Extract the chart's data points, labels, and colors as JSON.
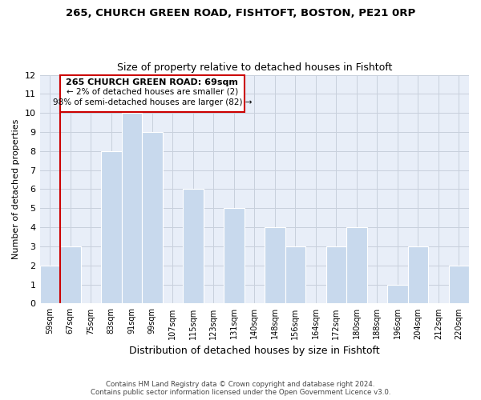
{
  "title": "265, CHURCH GREEN ROAD, FISHTOFT, BOSTON, PE21 0RP",
  "subtitle": "Size of property relative to detached houses in Fishtoft",
  "xlabel": "Distribution of detached houses by size in Fishtoft",
  "ylabel": "Number of detached properties",
  "footnote1": "Contains HM Land Registry data © Crown copyright and database right 2024.",
  "footnote2": "Contains public sector information licensed under the Open Government Licence v3.0.",
  "annotation_line1": "265 CHURCH GREEN ROAD: 69sqm",
  "annotation_line2": "← 2% of detached houses are smaller (2)",
  "annotation_line3": "98% of semi-detached houses are larger (82) →",
  "bar_labels": [
    "59sqm",
    "67sqm",
    "75sqm",
    "83sqm",
    "91sqm",
    "99sqm",
    "107sqm",
    "115sqm",
    "123sqm",
    "131sqm",
    "140sqm",
    "148sqm",
    "156sqm",
    "164sqm",
    "172sqm",
    "180sqm",
    "188sqm",
    "196sqm",
    "204sqm",
    "212sqm",
    "220sqm"
  ],
  "bar_values": [
    2,
    3,
    0,
    8,
    10,
    9,
    0,
    6,
    0,
    5,
    0,
    4,
    3,
    0,
    3,
    4,
    0,
    1,
    3,
    0,
    2
  ],
  "bar_color": "#c8d9ed",
  "highlight_bar_index": 1,
  "highlight_line_color": "#cc0000",
  "ylim": [
    0,
    12
  ],
  "yticks": [
    0,
    1,
    2,
    3,
    4,
    5,
    6,
    7,
    8,
    9,
    10,
    11,
    12
  ],
  "grid_color": "#c8d0dc",
  "bg_color": "#ffffff",
  "plot_bg_color": "#e8eef8"
}
